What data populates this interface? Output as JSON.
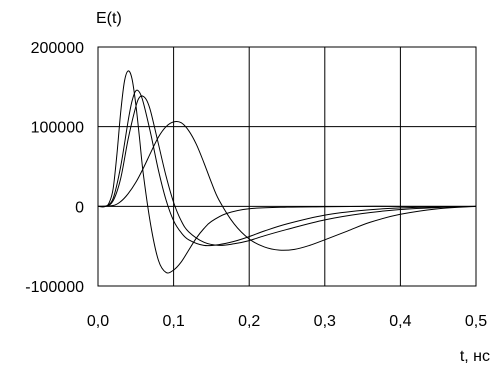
{
  "chart_data": {
    "type": "line",
    "title": "",
    "xlabel": "t, нс",
    "ylabel": "E(t)",
    "xlim": [
      0,
      0.5
    ],
    "ylim": [
      -100000,
      200000
    ],
    "grid": true,
    "x_ticks": [
      0,
      0.1,
      0.2,
      0.3,
      0.4,
      0.5
    ],
    "x_tick_labels": [
      "0,0",
      "0,1",
      "0,2",
      "0,3",
      "0,4",
      "0,5"
    ],
    "y_ticks": [
      200000,
      100000,
      0,
      -100000
    ],
    "y_tick_labels": [
      "200000",
      "100000",
      "0",
      "-100000"
    ],
    "series": [
      {
        "x": [
          0,
          0.01,
          0.015,
          0.02,
          0.025,
          0.03,
          0.035,
          0.04,
          0.045,
          0.05,
          0.055,
          0.06,
          0.07,
          0.08,
          0.09,
          0.1,
          0.11,
          0.12,
          0.13,
          0.14,
          0.15,
          0.17,
          0.2,
          0.25,
          0.3,
          0.35,
          0.4,
          0.5
        ],
        "values": [
          0,
          0,
          5000,
          22000,
          65000,
          118000,
          157000,
          170000,
          160000,
          128000,
          85000,
          40000,
          -25000,
          -68000,
          -83000,
          -80000,
          -70000,
          -55000,
          -40000,
          -28000,
          -19000,
          -9000,
          -3000,
          -1000,
          -500,
          0,
          0,
          0
        ]
      },
      {
        "x": [
          0,
          0.01,
          0.02,
          0.03,
          0.04,
          0.045,
          0.05,
          0.055,
          0.06,
          0.07,
          0.08,
          0.09,
          0.1,
          0.11,
          0.12,
          0.14,
          0.16,
          0.18,
          0.2,
          0.22,
          0.25,
          0.3,
          0.35,
          0.4,
          0.45,
          0.5
        ],
        "values": [
          0,
          0,
          10000,
          50000,
          108000,
          132000,
          145000,
          143000,
          130000,
          90000,
          45000,
          8000,
          -18000,
          -33000,
          -42000,
          -49000,
          -48000,
          -44000,
          -38000,
          -31000,
          -22000,
          -11000,
          -5000,
          -2000,
          -800,
          0
        ]
      },
      {
        "x": [
          0,
          0.01,
          0.02,
          0.03,
          0.04,
          0.05,
          0.055,
          0.06,
          0.065,
          0.07,
          0.08,
          0.09,
          0.1,
          0.11,
          0.12,
          0.14,
          0.16,
          0.18,
          0.2,
          0.22,
          0.25,
          0.3,
          0.35,
          0.4,
          0.45,
          0.5
        ],
        "values": [
          0,
          0,
          7000,
          35000,
          85000,
          125000,
          137000,
          138000,
          132000,
          118000,
          78000,
          38000,
          5000,
          -18000,
          -32000,
          -45000,
          -49000,
          -47000,
          -43000,
          -37000,
          -29000,
          -17000,
          -9000,
          -4000,
          -1500,
          0
        ]
      },
      {
        "x": [
          0,
          0.02,
          0.03,
          0.04,
          0.05,
          0.06,
          0.07,
          0.08,
          0.09,
          0.1,
          0.11,
          0.12,
          0.13,
          0.14,
          0.15,
          0.16,
          0.18,
          0.2,
          0.22,
          0.24,
          0.26,
          0.28,
          0.3,
          0.33,
          0.36,
          0.4,
          0.45,
          0.5
        ],
        "values": [
          0,
          1000,
          6000,
          16000,
          30000,
          48000,
          68000,
          87000,
          100000,
          106000,
          105000,
          95000,
          78000,
          55000,
          30000,
          8000,
          -22000,
          -41000,
          -51000,
          -55000,
          -54000,
          -49000,
          -42000,
          -31000,
          -20000,
          -10000,
          -3000,
          0
        ]
      }
    ]
  }
}
